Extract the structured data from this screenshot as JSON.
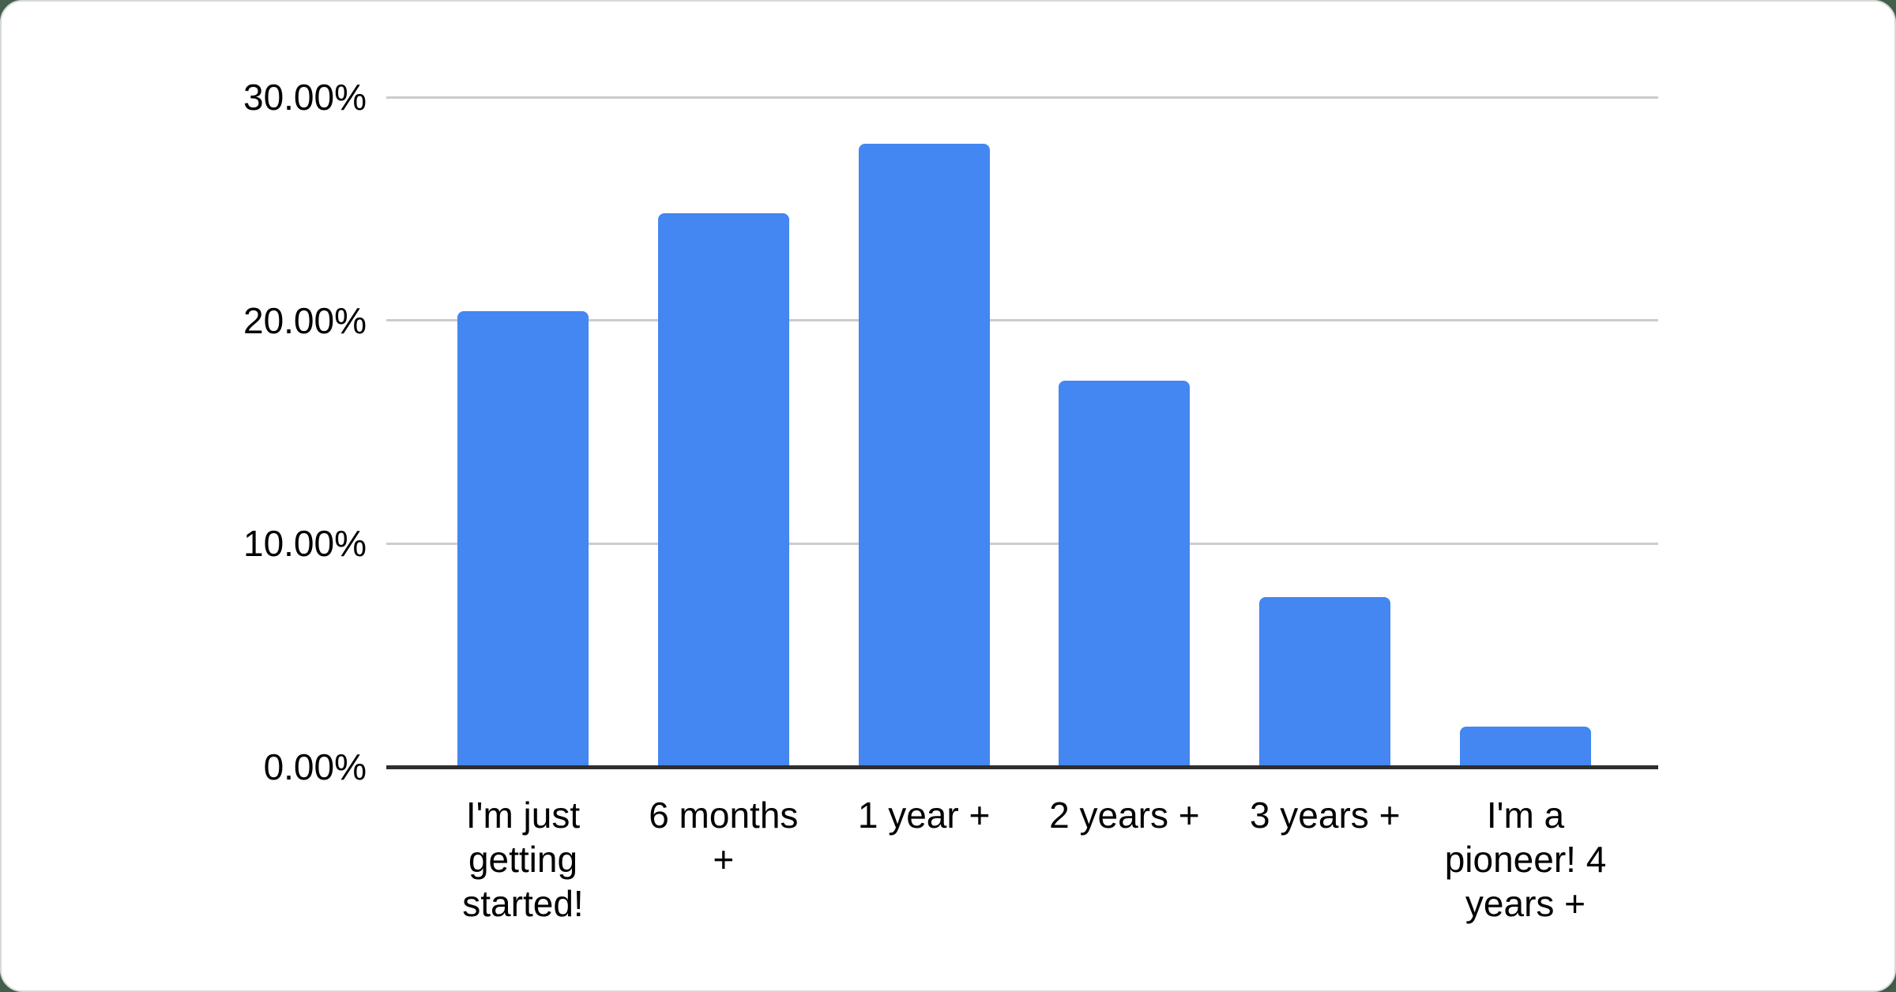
{
  "page": {
    "background_color": "#46604e"
  },
  "card": {
    "background_color": "#ffffff",
    "border_color": "#d6dbd6"
  },
  "chart_data": {
    "type": "bar",
    "title": "",
    "categories": [
      "I'm just getting started!",
      "6 months +",
      "1 year +",
      "2 years +",
      "3 years +",
      "I'm a pioneer! 4 years +"
    ],
    "values": [
      20.4,
      24.8,
      27.9,
      17.3,
      7.6,
      1.8
    ],
    "value_unit": "%",
    "xlabel": "",
    "ylabel": "",
    "ylim": [
      0,
      30
    ],
    "y_ticks": [
      {
        "value": 0,
        "label": "0.00%"
      },
      {
        "value": 10,
        "label": "10.00%"
      },
      {
        "value": 20,
        "label": "20.00%"
      },
      {
        "value": 30,
        "label": "30.00%"
      }
    ],
    "grid": true,
    "legend_position": "none",
    "bar_color": "#4486f2",
    "gridline_color": "#cccccc",
    "axis_line_color": "#2e2e2e",
    "tick_text_color": "#000000"
  }
}
